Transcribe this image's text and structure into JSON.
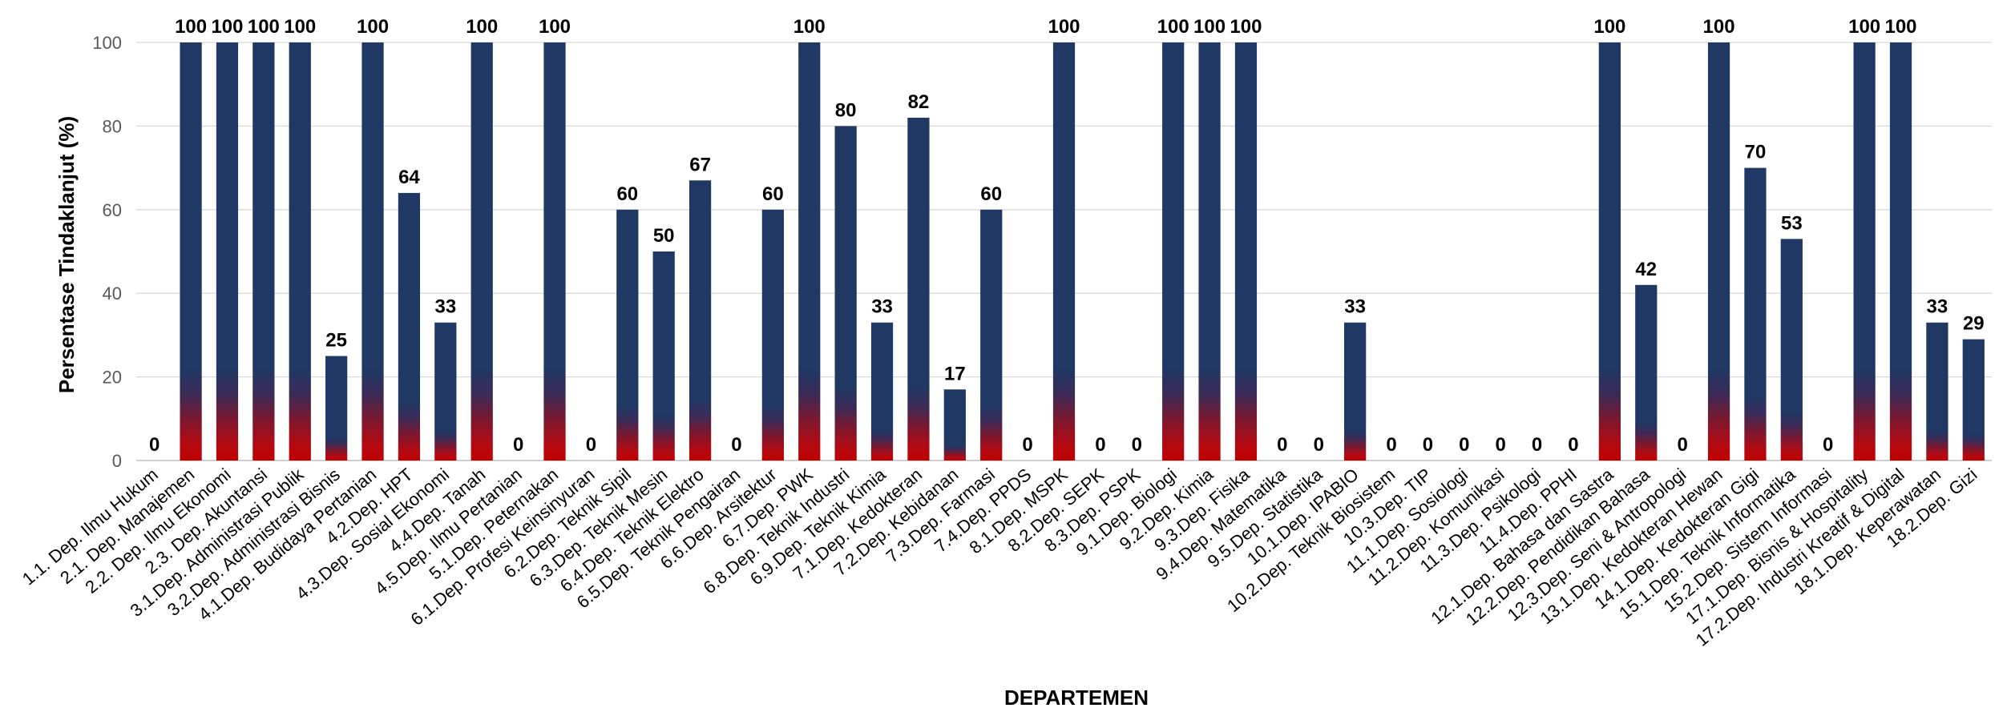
{
  "chart_data": {
    "type": "bar",
    "title": "",
    "xlabel": "DEPARTEMEN",
    "ylabel": "Persentase Tindaklanjut (%)",
    "ylim": [
      0,
      100
    ],
    "yticks": [
      0,
      20,
      40,
      60,
      80,
      100
    ],
    "grid": true,
    "legend": "none",
    "colors": {
      "bar_top": "#1f3864",
      "bar_bottom": "#c00000"
    },
    "categories": [
      "1.1. Dep. Ilmu Hukum",
      "2.1. Dep. Manajemen",
      "2.2. Dep. Ilmu Ekonomi",
      "2.3. Dep. Akuntansi",
      "3.1.Dep. Administrasi Publik",
      "3.2.Dep. Administrasi Bisnis",
      "4.1.Dep. Budidaya Pertanian",
      "4.2.Dep. HPT",
      "4.3.Dep. Sosial Ekonomi",
      "4.4.Dep. Tanah",
      "4.5.Dep. Ilmu Pertanian",
      "5.1.Dep. Peternakan",
      "6.1.Dep. Profesi Keinsinyuran",
      "6.2.Dep. Teknik Sipil",
      "6.3.Dep. Teknik Mesin",
      "6.4.Dep. Teknik Elektro",
      "6.5.Dep. Teknik Pengairan",
      "6.6.Dep. Arsitektur",
      "6.7.Dep. PWK",
      "6.8.Dep. Teknik Industri",
      "6.9.Dep. Teknik Kimia",
      "7.1.Dep. Kedokteran",
      "7.2.Dep. Kebidanan",
      "7.3.Dep. Farmasi",
      "7.4.Dep. PPDS",
      "8.1.Dep. MSPK",
      "8.2.Dep. SEPK",
      "8.3.Dep. PSPK",
      "9.1.Dep. Biologi",
      "9.2.Dep. Kimia",
      "9.3.Dep. Fisika",
      "9.4.Dep. Matematika",
      "9.5.Dep. Statistika",
      "10.1.Dep. IPABIO",
      "10.2.Dep. Teknik Biosistem",
      "10.3.Dep. TIP",
      "11.1.Dep. Sosiologi",
      "11.2.Dep. Komunikasi",
      "11.3.Dep. Psikologi",
      "11.4.Dep. PPHI",
      "12.1.Dep. Bahasa dan Sastra",
      "12.2.Dep. Pendidikan Bahasa",
      "12.3.Dep. Seni & Antropologi",
      "13.1.Dep. Kedokteran Hewan",
      "14.1.Dep. Kedokteran Gigi",
      "15.1.Dep. Teknik Informatika",
      "15.2.Dep. Sistem Informasi",
      "17.1.Dep. Bisnis & Hospitality",
      "17.2.Dep. Industri Kreatif & Digital",
      "18.1.Dep. Keperawatan",
      "18.2.Dep. Gizi"
    ],
    "values": [
      0,
      100,
      100,
      100,
      100,
      25,
      100,
      64,
      33,
      100,
      0,
      100,
      0,
      60,
      50,
      67,
      0,
      60,
      100,
      80,
      33,
      82,
      17,
      60,
      0,
      100,
      0,
      0,
      100,
      100,
      100,
      0,
      0,
      33,
      0,
      0,
      0,
      0,
      0,
      0,
      100,
      42,
      0,
      100,
      70,
      53,
      0,
      100,
      100,
      33,
      29
    ]
  }
}
